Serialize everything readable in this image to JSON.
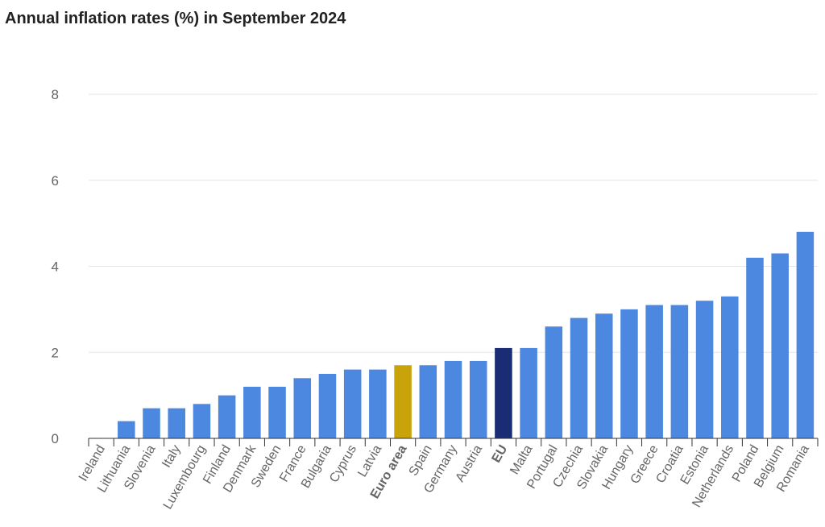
{
  "title": "Annual inflation rates (%) in September 2024",
  "colors": {
    "default": "#4d88e0",
    "euro_area": "#c9a30a",
    "eu": "#1a2d74",
    "grid": "#e6e6e6",
    "axis": "#333333"
  },
  "chart_data": {
    "type": "bar",
    "title": "Annual inflation rates (%) in September 2024",
    "xlabel": "",
    "ylabel": "",
    "ylim": [
      0,
      8
    ],
    "yticks": [
      0,
      2,
      4,
      6,
      8
    ],
    "grid": true,
    "highlighted": [
      "Euro area",
      "EU"
    ],
    "categories": [
      "Ireland",
      "Lithuania",
      "Slovenia",
      "Italy",
      "Luxembourg",
      "Finland",
      "Denmark",
      "Sweden",
      "France",
      "Bulgaria",
      "Cyprus",
      "Latvia",
      "Euro area",
      "Spain",
      "Germany",
      "Austria",
      "EU",
      "Malta",
      "Portugal",
      "Czechia",
      "Slovakia",
      "Hungary",
      "Greece",
      "Croatia",
      "Estonia",
      "Netherlands",
      "Poland",
      "Belgium",
      "Romania"
    ],
    "values": [
      0.0,
      0.4,
      0.7,
      0.7,
      0.8,
      1.0,
      1.2,
      1.2,
      1.4,
      1.5,
      1.6,
      1.6,
      1.7,
      1.7,
      1.8,
      1.8,
      2.1,
      2.1,
      2.6,
      2.8,
      2.9,
      3.0,
      3.1,
      3.1,
      3.2,
      3.3,
      4.2,
      4.3,
      4.8
    ]
  }
}
